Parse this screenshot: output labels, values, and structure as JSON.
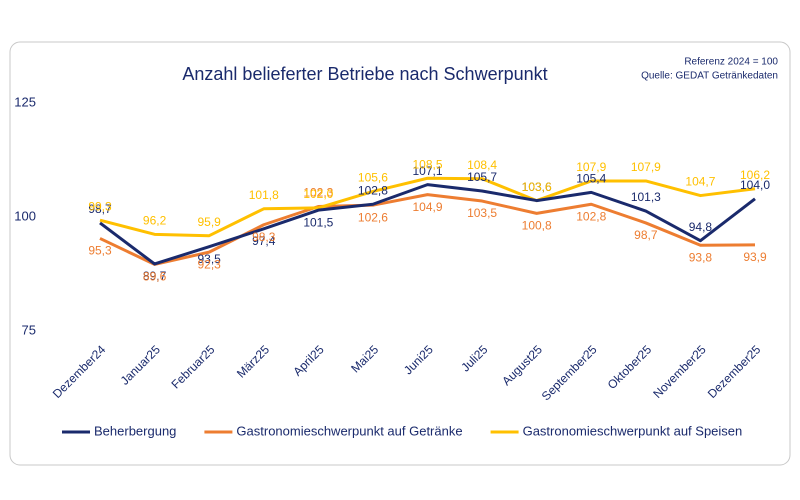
{
  "chart_data": {
    "type": "line",
    "title": "Anzahl belieferter Betriebe nach Schwerpunkt",
    "note_lines": [
      "Referenz 2024 = 100",
      "Quelle: GEDAT Getränkedaten"
    ],
    "categories": [
      "Dezember24",
      "Januar25",
      "Februar25",
      "März25",
      "April25",
      "Mai25",
      "Juni25",
      "Juli25",
      "August25",
      "September25",
      "Oktober25",
      "November25",
      "Dezember25"
    ],
    "series": [
      {
        "name": "Beherbergung",
        "color": "#1a2a6c",
        "values": [
          98.7,
          89.7,
          93.5,
          97.4,
          101.5,
          102.8,
          107.1,
          105.7,
          103.6,
          105.4,
          101.3,
          94.8,
          104.0
        ],
        "value_labels": [
          "98,7",
          "89,7",
          "93,5",
          "97,4",
          "101,5",
          "102,8",
          "107,1",
          "105,7",
          "103,6",
          "105,4",
          "101,3",
          "94,8",
          "104,0"
        ]
      },
      {
        "name": "Gastronomieschwerpunkt auf Getränke",
        "color": "#ed7d31",
        "values": [
          95.3,
          89.6,
          92.3,
          98.3,
          102.3,
          102.6,
          104.9,
          103.5,
          100.8,
          102.8,
          98.7,
          93.8,
          93.9
        ],
        "value_labels": [
          "95,3",
          "89,6",
          "92,3",
          "98,3",
          "102,3",
          "102,6",
          "104,9",
          "103,5",
          "100,8",
          "102,8",
          "98,7",
          "93,8",
          "93,9"
        ]
      },
      {
        "name": "Gastronomieschwerpunkt auf Speisen",
        "color": "#ffc000",
        "values": [
          99.3,
          96.2,
          95.9,
          101.8,
          102.0,
          105.6,
          108.5,
          108.4,
          103.6,
          107.9,
          107.9,
          104.7,
          106.2
        ],
        "value_labels": [
          "99,3",
          "96,2",
          "95,9",
          "101,8",
          "102,0",
          "105,6",
          "108,5",
          "108,4",
          "103,6",
          "107,9",
          "107,9",
          "104,7",
          "106,2"
        ]
      }
    ],
    "ylim": [
      75,
      125
    ],
    "yticks": [
      75,
      100,
      125
    ],
    "grid": false,
    "legend": "bottom"
  }
}
